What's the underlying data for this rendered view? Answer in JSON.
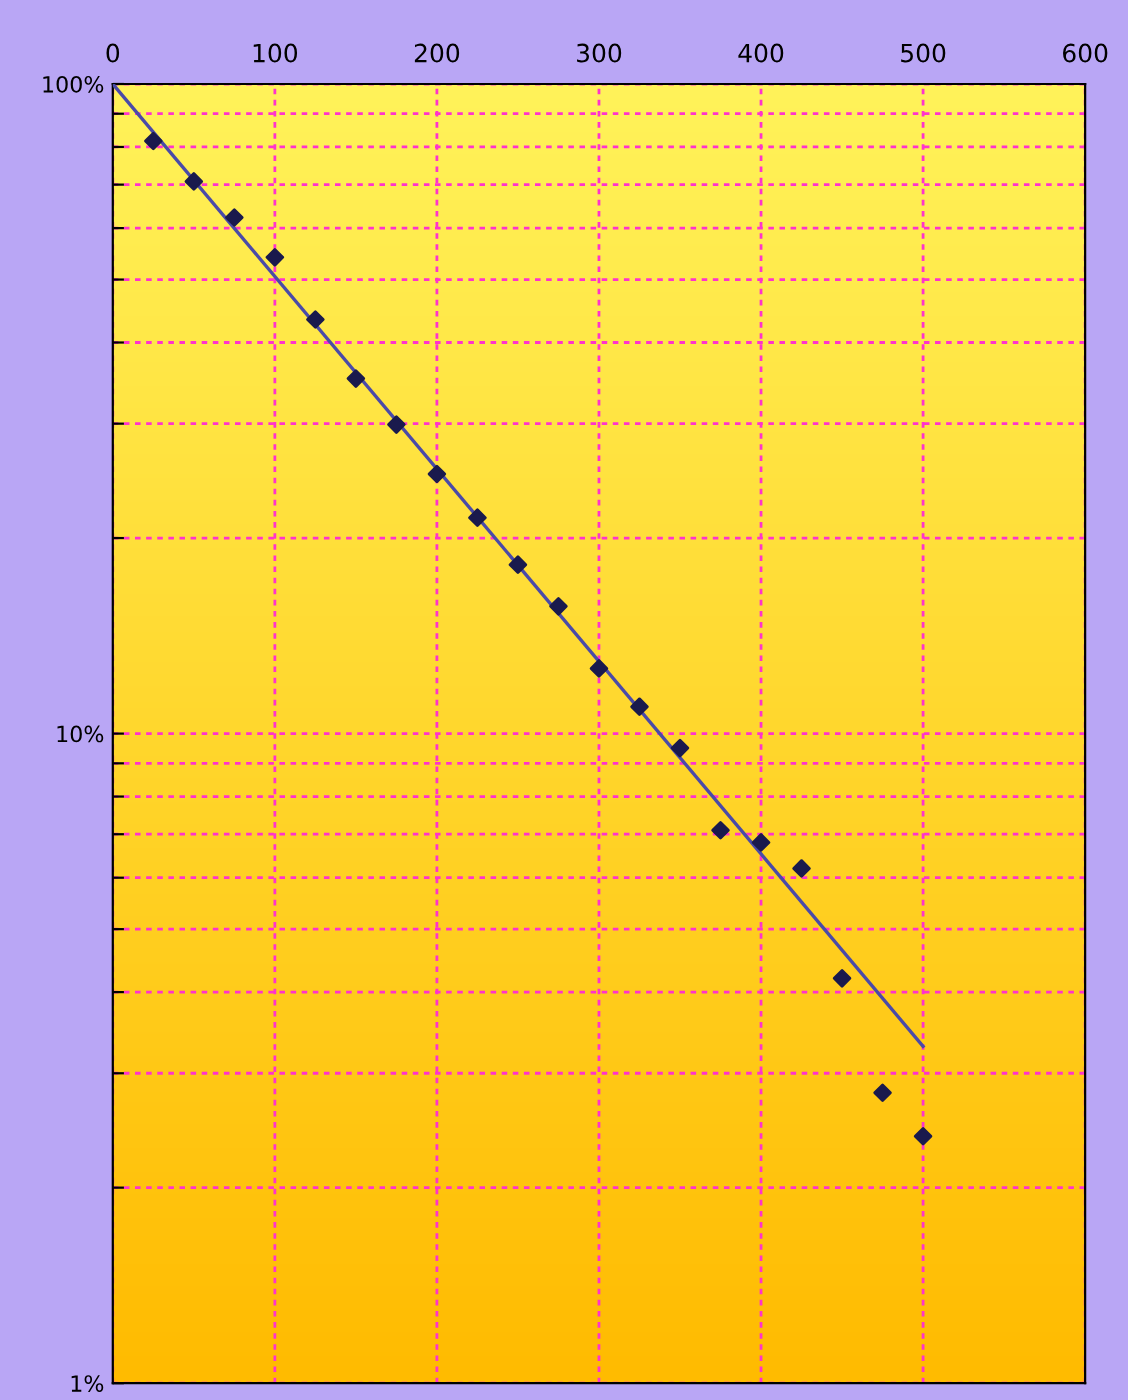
{
  "chart_data": {
    "type": "scatter",
    "xlim": [
      0,
      600
    ],
    "xticks": [
      0,
      100,
      200,
      300,
      400,
      500,
      600
    ],
    "ylim": [
      1,
      100
    ],
    "log": "y",
    "yticks": [
      {
        "value": 1,
        "label": "1%"
      },
      {
        "value": 2,
        "label": null
      },
      {
        "value": 3,
        "label": null
      },
      {
        "value": 4,
        "label": null
      },
      {
        "value": 5,
        "label": null
      },
      {
        "value": 6,
        "label": null
      },
      {
        "value": 7,
        "label": null
      },
      {
        "value": 8,
        "label": null
      },
      {
        "value": 9,
        "label": null
      },
      {
        "value": 10,
        "label": "10%"
      },
      {
        "value": 20,
        "label": null
      },
      {
        "value": 30,
        "label": null
      },
      {
        "value": 40,
        "label": null
      },
      {
        "value": 50,
        "label": null
      },
      {
        "value": 60,
        "label": null
      },
      {
        "value": 70,
        "label": null
      },
      {
        "value": 80,
        "label": null
      },
      {
        "value": 90,
        "label": null
      },
      {
        "value": 100,
        "label": "100%"
      }
    ],
    "grid": true,
    "series": [
      {
        "marker": "diamond",
        "color": "#1a1a4d",
        "x": [
          25,
          50,
          75,
          100,
          125,
          150,
          175,
          200,
          225,
          250,
          275,
          300,
          325,
          350,
          375,
          400,
          425,
          450,
          475,
          500
        ],
        "values": [
          81.7,
          70.8,
          62.3,
          54.1,
          43.4,
          35.2,
          29.9,
          25.1,
          21.5,
          18.2,
          15.7,
          12.6,
          11.0,
          9.5,
          7.1,
          6.8,
          6.2,
          4.2,
          2.8,
          2.4
        ]
      },
      {
        "type": "line",
        "color": "#4a4aa8",
        "line_style": "solid",
        "x": [
          0,
          500
        ],
        "values": [
          100,
          3.3
        ]
      }
    ]
  }
}
